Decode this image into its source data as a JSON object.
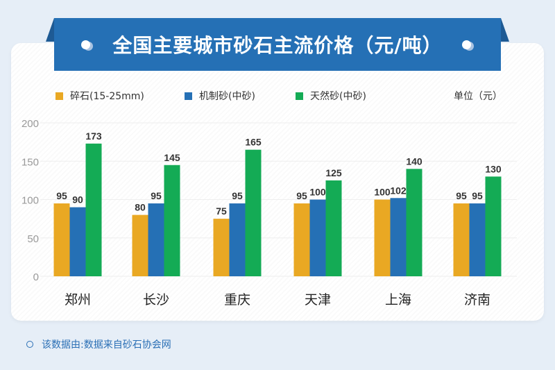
{
  "title": "全国主要城市砂石主流价格（元/吨）",
  "unit_label": "单位（元）",
  "footer": "该数据由:数据来自砂石协会网",
  "chart_data": {
    "type": "bar",
    "categories": [
      "郑州",
      "长沙",
      "重庆",
      "天津",
      "上海",
      "济南"
    ],
    "series": [
      {
        "name": "碎石(15-25mm)",
        "color": "#e9a823",
        "values": [
          95,
          80,
          75,
          95,
          100,
          95
        ]
      },
      {
        "name": "机制砂(中砂)",
        "color": "#2570b5",
        "values": [
          90,
          95,
          95,
          100,
          102,
          95
        ]
      },
      {
        "name": "天然砂(中砂)",
        "color": "#14ab55",
        "values": [
          173,
          145,
          165,
          125,
          140,
          130
        ]
      }
    ],
    "ylim": [
      0,
      200
    ],
    "yticks": [
      0,
      50,
      100,
      150,
      200
    ],
    "grid": true,
    "legend": "top-left"
  }
}
